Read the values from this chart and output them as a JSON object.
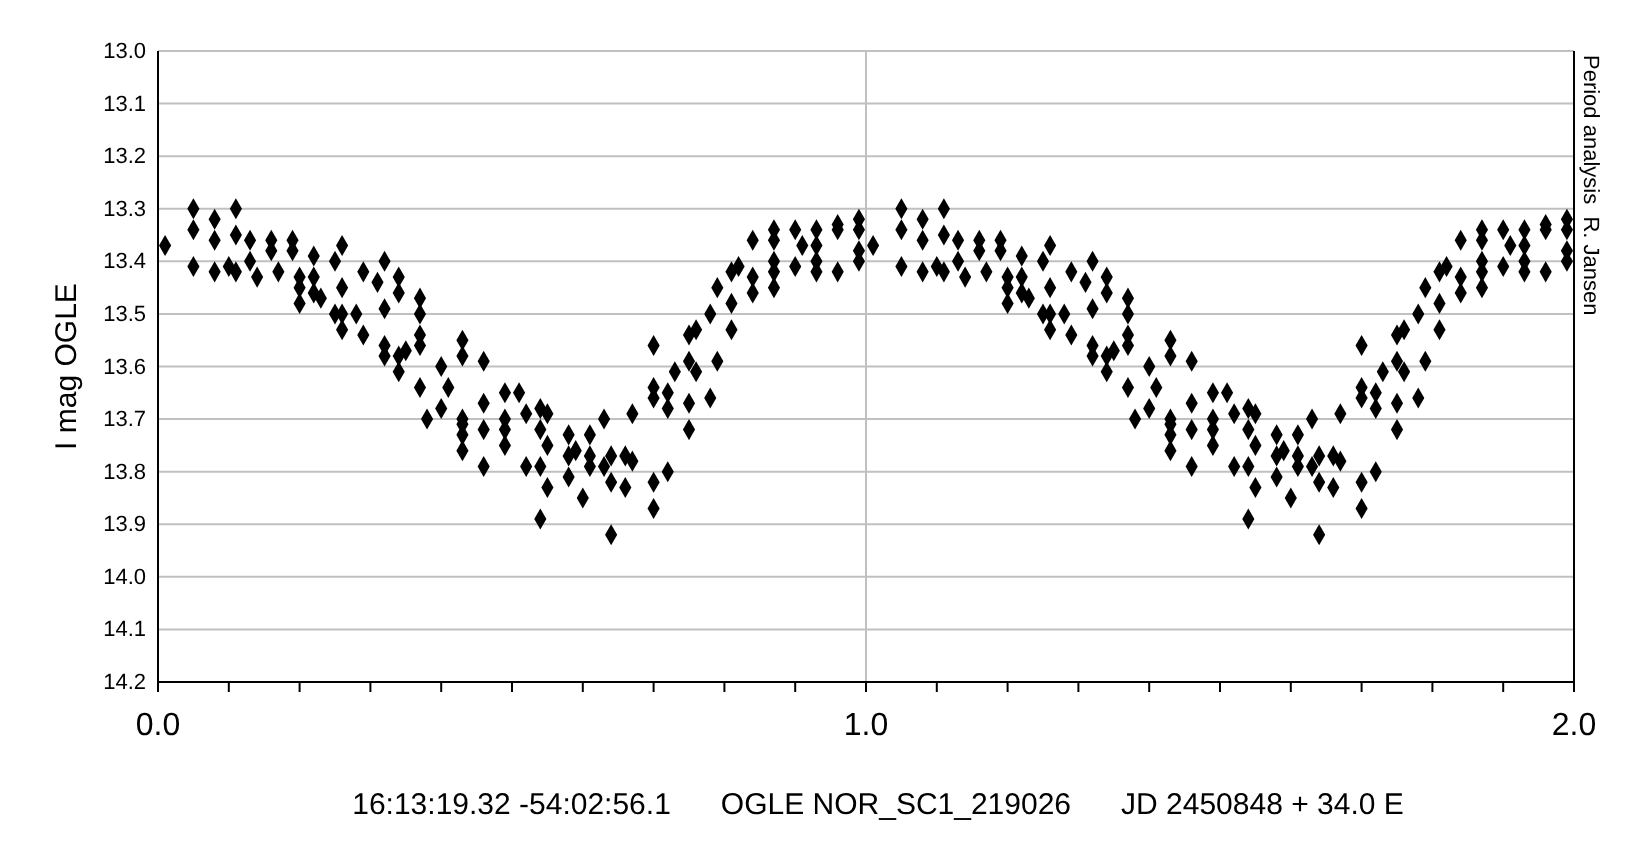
{
  "chart_data": {
    "type": "scatter",
    "xlabel": "16:13:19.32 -54:02:56.1      OGLE NOR_SC1_219026      JD 2450848 + 34.0 E",
    "ylabel": "I mag OGLE",
    "annotations": [
      "Period analysis  R. Jansen"
    ],
    "xlim": [
      0,
      2
    ],
    "ylim": [
      14.2,
      13.0
    ],
    "xticks": [
      {
        "value": 0,
        "label": "0.0"
      },
      {
        "value": 0.1,
        "label": null
      },
      {
        "value": 0.2,
        "label": null
      },
      {
        "value": 0.3,
        "label": null
      },
      {
        "value": 0.4,
        "label": null
      },
      {
        "value": 0.5,
        "label": null
      },
      {
        "value": 0.6,
        "label": null
      },
      {
        "value": 0.7,
        "label": null
      },
      {
        "value": 0.8,
        "label": null
      },
      {
        "value": 0.9,
        "label": null
      },
      {
        "value": 1,
        "label": "1.0"
      },
      {
        "value": 1.1,
        "label": null
      },
      {
        "value": 1.2,
        "label": null
      },
      {
        "value": 1.3,
        "label": null
      },
      {
        "value": 1.4,
        "label": null
      },
      {
        "value": 1.5,
        "label": null
      },
      {
        "value": 1.6,
        "label": null
      },
      {
        "value": 1.7,
        "label": null
      },
      {
        "value": 1.8,
        "label": null
      },
      {
        "value": 1.9,
        "label": null
      },
      {
        "value": 2,
        "label": "2.0"
      }
    ],
    "yticks": [
      {
        "value": 13,
        "label": "13.0"
      },
      13.1,
      13.2,
      13.3,
      13.4,
      13.5,
      13.6,
      13.7,
      13.8,
      13.9,
      {
        "value": 14,
        "label": "14.0"
      },
      14.1,
      14.2
    ],
    "grid": true,
    "marker": "diamond",
    "series": [
      {
        "color": "#000000",
        "x": [
          0.01,
          0.05,
          0.05,
          0.05,
          0.08,
          0.08,
          0.08,
          0.11,
          0.11,
          0.1,
          0.11,
          0.13,
          0.13,
          0.14,
          0.16,
          0.16,
          0.17,
          0.19,
          0.19,
          0.2,
          0.2,
          0.2,
          0.22,
          0.22,
          0.22,
          0.23,
          0.25,
          0.26,
          0.26,
          0.25,
          0.26,
          0.26,
          0.28,
          0.29,
          0.29,
          0.32,
          0.31,
          0.32,
          0.32,
          0.32,
          0.34,
          0.34,
          0.34,
          0.34,
          0.35,
          0.37,
          0.37,
          0.37,
          0.37,
          0.37,
          0.38,
          0.4,
          0.41,
          0.4,
          0.43,
          0.43,
          0.46,
          0.43,
          0.43,
          0.43,
          0.43,
          0.46,
          0.46,
          0.46,
          0.49,
          0.49,
          0.49,
          0.49,
          0.51,
          0.52,
          0.52,
          0.54,
          0.55,
          0.54,
          0.55,
          0.54,
          0.55,
          0.54,
          0.58,
          0.58,
          0.58,
          0.59,
          0.6,
          0.61,
          0.61,
          0.61,
          0.63,
          0.63,
          0.64,
          0.64,
          0.64,
          0.66,
          0.67,
          0.66,
          0.67,
          0.7,
          0.7,
          0.7,
          0.7,
          0.7,
          0.72,
          0.72,
          0.72,
          0.73,
          0.75,
          0.76,
          0.75,
          0.76,
          0.75,
          0.75,
          0.78,
          0.79,
          0.79,
          0.78,
          0.81,
          0.82,
          0.81,
          0.81,
          0.84,
          0.84,
          0.84,
          0.87,
          0.87,
          0.87,
          0.87,
          0.87,
          0.9,
          0.9,
          0.91,
          0.93,
          0.93,
          0.93,
          0.93,
          0.96,
          0.96,
          0.96,
          0.99,
          0.99,
          0.99,
          0.99
        ],
        "values": [
          13.37,
          13.3,
          13.34,
          13.41,
          13.32,
          13.36,
          13.42,
          13.3,
          13.35,
          13.41,
          13.42,
          13.36,
          13.4,
          13.43,
          13.36,
          13.38,
          13.42,
          13.36,
          13.38,
          13.43,
          13.45,
          13.48,
          13.39,
          13.43,
          13.46,
          13.47,
          13.4,
          13.37,
          13.45,
          13.5,
          13.5,
          13.53,
          13.5,
          13.54,
          13.42,
          13.4,
          13.44,
          13.49,
          13.56,
          13.58,
          13.43,
          13.46,
          13.58,
          13.61,
          13.57,
          13.54,
          13.56,
          13.47,
          13.5,
          13.64,
          13.7,
          13.6,
          13.64,
          13.68,
          13.55,
          13.58,
          13.59,
          13.71,
          13.7,
          13.73,
          13.76,
          13.67,
          13.72,
          13.79,
          13.65,
          13.7,
          13.72,
          13.75,
          13.65,
          13.69,
          13.79,
          13.68,
          13.69,
          13.72,
          13.75,
          13.79,
          13.83,
          13.89,
          13.73,
          13.77,
          13.81,
          13.76,
          13.85,
          13.73,
          13.77,
          13.79,
          13.7,
          13.79,
          13.77,
          13.82,
          13.92,
          13.77,
          13.78,
          13.83,
          13.69,
          13.64,
          13.66,
          13.56,
          13.82,
          13.87,
          13.65,
          13.68,
          13.8,
          13.61,
          13.54,
          13.53,
          13.59,
          13.61,
          13.67,
          13.72,
          13.5,
          13.45,
          13.59,
          13.66,
          13.42,
          13.41,
          13.48,
          13.53,
          13.36,
          13.43,
          13.46,
          13.34,
          13.36,
          13.4,
          13.42,
          13.45,
          13.34,
          13.41,
          13.37,
          13.4,
          13.34,
          13.37,
          13.42,
          13.34,
          13.33,
          13.42,
          13.32,
          13.34,
          13.38,
          13.4
        ]
      },
      {
        "color": "#000000",
        "x": [
          1.01,
          1.05,
          1.05,
          1.05,
          1.08,
          1.08,
          1.08,
          1.11,
          1.11,
          1.1,
          1.11,
          1.13,
          1.13,
          1.14,
          1.16,
          1.16,
          1.17,
          1.19,
          1.19,
          1.2,
          1.2,
          1.2,
          1.22,
          1.22,
          1.22,
          1.23,
          1.25,
          1.26,
          1.26,
          1.25,
          1.26,
          1.26,
          1.28,
          1.29,
          1.29,
          1.32,
          1.31,
          1.32,
          1.32,
          1.32,
          1.34,
          1.34,
          1.34,
          1.34,
          1.35,
          1.37,
          1.37,
          1.37,
          1.37,
          1.37,
          1.38,
          1.4,
          1.41,
          1.4,
          1.43,
          1.43,
          1.46,
          1.43,
          1.43,
          1.43,
          1.43,
          1.46,
          1.46,
          1.46,
          1.49,
          1.49,
          1.49,
          1.49,
          1.51,
          1.52,
          1.52,
          1.54,
          1.55,
          1.54,
          1.55,
          1.54,
          1.55,
          1.54,
          1.58,
          1.58,
          1.58,
          1.59,
          1.6,
          1.61,
          1.61,
          1.61,
          1.63,
          1.63,
          1.64,
          1.64,
          1.64,
          1.66,
          1.67,
          1.66,
          1.67,
          1.7,
          1.7,
          1.7,
          1.7,
          1.7,
          1.72,
          1.72,
          1.72,
          1.73,
          1.75,
          1.76,
          1.75,
          1.76,
          1.75,
          1.75,
          1.78,
          1.79,
          1.79,
          1.78,
          1.81,
          1.82,
          1.81,
          1.81,
          1.84,
          1.84,
          1.84,
          1.87,
          1.87,
          1.87,
          1.87,
          1.87,
          1.9,
          1.9,
          1.91,
          1.93,
          1.93,
          1.93,
          1.93,
          1.96,
          1.96,
          1.96,
          1.99,
          1.99,
          1.99,
          1.99
        ],
        "values": [
          13.37,
          13.3,
          13.34,
          13.41,
          13.32,
          13.36,
          13.42,
          13.3,
          13.35,
          13.41,
          13.42,
          13.36,
          13.4,
          13.43,
          13.36,
          13.38,
          13.42,
          13.36,
          13.38,
          13.43,
          13.45,
          13.48,
          13.39,
          13.43,
          13.46,
          13.47,
          13.4,
          13.37,
          13.45,
          13.5,
          13.5,
          13.53,
          13.5,
          13.54,
          13.42,
          13.4,
          13.44,
          13.49,
          13.56,
          13.58,
          13.43,
          13.46,
          13.58,
          13.61,
          13.57,
          13.54,
          13.56,
          13.47,
          13.5,
          13.64,
          13.7,
          13.6,
          13.64,
          13.68,
          13.55,
          13.58,
          13.59,
          13.71,
          13.7,
          13.73,
          13.76,
          13.67,
          13.72,
          13.79,
          13.65,
          13.7,
          13.72,
          13.75,
          13.65,
          13.69,
          13.79,
          13.68,
          13.69,
          13.72,
          13.75,
          13.79,
          13.83,
          13.89,
          13.73,
          13.77,
          13.81,
          13.76,
          13.85,
          13.73,
          13.77,
          13.79,
          13.7,
          13.79,
          13.77,
          13.82,
          13.92,
          13.77,
          13.78,
          13.83,
          13.69,
          13.64,
          13.66,
          13.56,
          13.82,
          13.87,
          13.65,
          13.68,
          13.8,
          13.61,
          13.54,
          13.53,
          13.59,
          13.61,
          13.67,
          13.72,
          13.5,
          13.45,
          13.59,
          13.66,
          13.42,
          13.41,
          13.48,
          13.53,
          13.36,
          13.43,
          13.46,
          13.34,
          13.36,
          13.4,
          13.42,
          13.45,
          13.34,
          13.41,
          13.37,
          13.4,
          13.34,
          13.37,
          13.42,
          13.34,
          13.33,
          13.42,
          13.32,
          13.34,
          13.38,
          13.4
        ]
      }
    ]
  }
}
